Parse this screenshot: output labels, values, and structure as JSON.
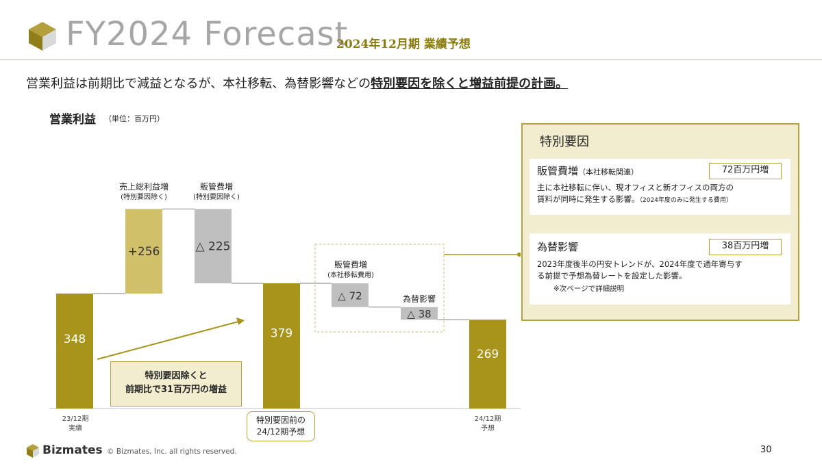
{
  "header": {
    "title_en": "FY2024 Forecast",
    "title_ja": "2024年12月期 業績予想"
  },
  "lead": {
    "text_plain": "営業利益は前期比で減益となるが、本社移転、為替影響などの",
    "text_emphasis": "特別要因を除くと増益前提の計画。"
  },
  "section": {
    "title": "営業利益",
    "unit": "（単位：百万円）"
  },
  "chart_data": {
    "type": "waterfall",
    "unit": "百万円",
    "steps": [
      {
        "label": "23/12期\n実績",
        "kind": "total",
        "value": 348,
        "display": "348"
      },
      {
        "label": "売上総利益増",
        "sublabel": "(特別要因除く)",
        "kind": "delta",
        "value": 256,
        "display": "+256"
      },
      {
        "label": "販管費増",
        "sublabel": "(特別要因除く)",
        "kind": "delta",
        "value": -225,
        "display": "△ 225"
      },
      {
        "label": "特別要因前の\n24/12期予想",
        "kind": "total",
        "value": 379,
        "display": "379"
      },
      {
        "label": "販管費増",
        "sublabel": "(本社移転費用)",
        "kind": "delta",
        "value": -72,
        "display": "△ 72"
      },
      {
        "label": "為替影響",
        "kind": "delta",
        "value": -38,
        "display": "△ 38"
      },
      {
        "label": "24/12期\n予想",
        "kind": "total",
        "value": 269,
        "display": "269"
      }
    ],
    "colors": {
      "total": "#a8941a",
      "increase": "#d0c06a",
      "decrease": "#bfbfbf",
      "connector": "#808080"
    },
    "callout": "特別要因除くと\n前期比で31百万円の増益"
  },
  "chart_labels": {
    "x_first_1": "23/12期",
    "x_first_2": "実績",
    "x_last_1": "24/12期",
    "x_last_2": "予想",
    "mid_1": "特別要因前の",
    "mid_2": "24/12期予想",
    "gross_1": "売上総利益増",
    "gross_2": "(特別要因除く)",
    "sga_1": "販管費増",
    "sga_2": "(特別要因除く)",
    "hq_1": "販管費増",
    "hq_2": "(本社移転費用)",
    "fx_1": "為替影響",
    "callout_1": "特別要因除くと",
    "callout_2": "前期比で31百万円の増益"
  },
  "panel": {
    "title": "特別要因",
    "items": [
      {
        "title": "販管費増",
        "subtitle": "（本社移転関連）",
        "amount": "72百万円増",
        "body_1": "主に本社移転に伴い、現オフィスと新オフィスの両方の",
        "body_2": "賃料が同時に発生する影響。",
        "body_note": "（2024年度のみに発生する費用）"
      },
      {
        "title": "為替影響",
        "amount": "38百万円増",
        "body_1": "2023年度後半の円安トレンドが、2024年度で通年寄与す",
        "body_2": "る前提で予想為替レートを設定した影響。",
        "body_note": "※次ページで詳細説明"
      }
    ]
  },
  "footer": {
    "brand": "Bizmates",
    "copyright": "© Bizmates, Inc. all rights reserved.",
    "page": "30"
  },
  "colors": {
    "accent": "#a8941a",
    "accent_light": "#f3edcf",
    "line": "#c9b66a"
  }
}
